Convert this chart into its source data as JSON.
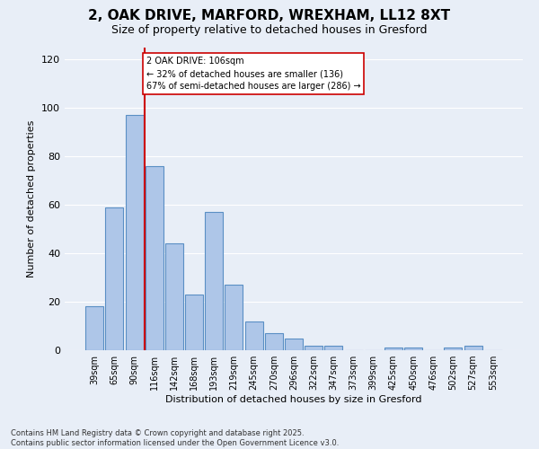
{
  "title": "2, OAK DRIVE, MARFORD, WREXHAM, LL12 8XT",
  "subtitle": "Size of property relative to detached houses in Gresford",
  "xlabel": "Distribution of detached houses by size in Gresford",
  "ylabel": "Number of detached properties",
  "categories": [
    "39sqm",
    "65sqm",
    "90sqm",
    "116sqm",
    "142sqm",
    "168sqm",
    "193sqm",
    "219sqm",
    "245sqm",
    "270sqm",
    "296sqm",
    "322sqm",
    "347sqm",
    "373sqm",
    "399sqm",
    "425sqm",
    "450sqm",
    "476sqm",
    "502sqm",
    "527sqm",
    "553sqm"
  ],
  "values": [
    18,
    59,
    97,
    76,
    44,
    23,
    57,
    27,
    12,
    7,
    5,
    2,
    2,
    0,
    0,
    1,
    1,
    0,
    1,
    2,
    0
  ],
  "bar_color": "#aec6e8",
  "bar_edge_color": "#5a8fc4",
  "background_color": "#e8eef7",
  "grid_color": "#ffffff",
  "vline_color": "#cc0000",
  "annotation_text": "2 OAK DRIVE: 106sqm\n← 32% of detached houses are smaller (136)\n67% of semi-detached houses are larger (286) →",
  "annotation_box_color": "#ffffff",
  "annotation_box_edge": "#cc0000",
  "footer": "Contains HM Land Registry data © Crown copyright and database right 2025.\nContains public sector information licensed under the Open Government Licence v3.0.",
  "ylim": [
    0,
    125
  ],
  "title_fontsize": 11,
  "subtitle_fontsize": 9,
  "tick_fontsize": 7,
  "ylabel_fontsize": 8,
  "xlabel_fontsize": 8,
  "footer_fontsize": 6
}
